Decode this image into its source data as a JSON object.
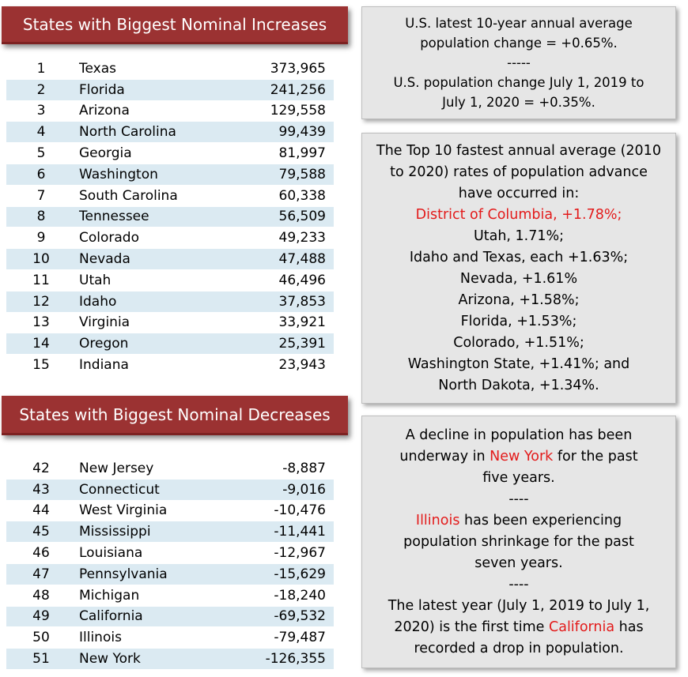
{
  "increases": {
    "title": "States with Biggest Nominal Increases",
    "rows": [
      {
        "rank": "1",
        "state": "Texas",
        "value": "373,965"
      },
      {
        "rank": "2",
        "state": "Florida",
        "value": "241,256"
      },
      {
        "rank": "3",
        "state": "Arizona",
        "value": "129,558"
      },
      {
        "rank": "4",
        "state": "North Carolina",
        "value": "99,439"
      },
      {
        "rank": "5",
        "state": "Georgia",
        "value": "81,997"
      },
      {
        "rank": "6",
        "state": "Washington",
        "value": "79,588"
      },
      {
        "rank": "7",
        "state": "South Carolina",
        "value": "60,338"
      },
      {
        "rank": "8",
        "state": "Tennessee",
        "value": "56,509"
      },
      {
        "rank": "9",
        "state": "Colorado",
        "value": "49,233"
      },
      {
        "rank": "10",
        "state": "Nevada",
        "value": "47,488"
      },
      {
        "rank": "11",
        "state": "Utah",
        "value": "46,496"
      },
      {
        "rank": "12",
        "state": "Idaho",
        "value": "37,853"
      },
      {
        "rank": "13",
        "state": "Virginia",
        "value": "33,921"
      },
      {
        "rank": "14",
        "state": "Oregon",
        "value": "25,391"
      },
      {
        "rank": "15",
        "state": "Indiana",
        "value": "23,943"
      }
    ]
  },
  "decreases": {
    "title": "States with Biggest Nominal Decreases",
    "rows": [
      {
        "rank": "42",
        "state": "New Jersey",
        "value": "-8,887"
      },
      {
        "rank": "43",
        "state": "Connecticut",
        "value": "-9,016"
      },
      {
        "rank": "44",
        "state": "West Virginia",
        "value": "-10,476"
      },
      {
        "rank": "45",
        "state": "Mississippi",
        "value": "-11,441"
      },
      {
        "rank": "46",
        "state": "Louisiana",
        "value": "-12,967"
      },
      {
        "rank": "47",
        "state": "Pennsylvania",
        "value": "-15,629"
      },
      {
        "rank": "48",
        "state": "Michigan",
        "value": "-18,240"
      },
      {
        "rank": "49",
        "state": "California",
        "value": "-69,532"
      },
      {
        "rank": "50",
        "state": "Illinois",
        "value": "-79,487"
      },
      {
        "rank": "51",
        "state": "New York",
        "value": "-126,355"
      }
    ]
  },
  "colors": {
    "banner": "#9b3232",
    "row_alt": "#dbeaf2",
    "highlight": "#e31b1b",
    "box": "#e6e6e6"
  },
  "box1": {
    "line1": "U.S. latest 10-year annual average",
    "line2": "population change = +0.65%.",
    "sep": "-----",
    "line3": "U.S. population change July 1, 2019 to",
    "line4": "July 1, 2020 = +0.35%."
  },
  "box2": {
    "intro1": "The Top 10 fastest annual average (2010",
    "intro2": "to 2020) rates of population advance",
    "intro3": "have occurred in:",
    "dc": "District of Columbia, +1.78%;",
    "utah": "Utah, 1.71%;",
    "idaho_texas": "Idaho and Texas, each +1.63%;",
    "nevada": "Nevada, +1.61%",
    "arizona": "Arizona, +1.58%;",
    "florida": "Florida, +1.53%;",
    "colorado": "Colorado, +1.51%;",
    "washington": "Washington State, +1.41%; and",
    "north_dakota": "North Dakota, +1.34%."
  },
  "box3": {
    "p1_line1": "A decline in population has been",
    "p1_pre": "underway in ",
    "p1_red": "New York",
    "p1_post": " for the past",
    "p1_line3": "five years.",
    "sep1": "----",
    "p2_red": "Illinois",
    "p2_post": " has been experiencing",
    "p2_line2": "population shrinkage for the past",
    "p2_line3": "seven years.",
    "sep2": "----",
    "p3_line1": "The latest year (July 1, 2019 to July 1,",
    "p3_pre": "2020) is the first time ",
    "p3_red": "California",
    "p3_post": " has",
    "p3_line3": "recorded a drop in population."
  }
}
